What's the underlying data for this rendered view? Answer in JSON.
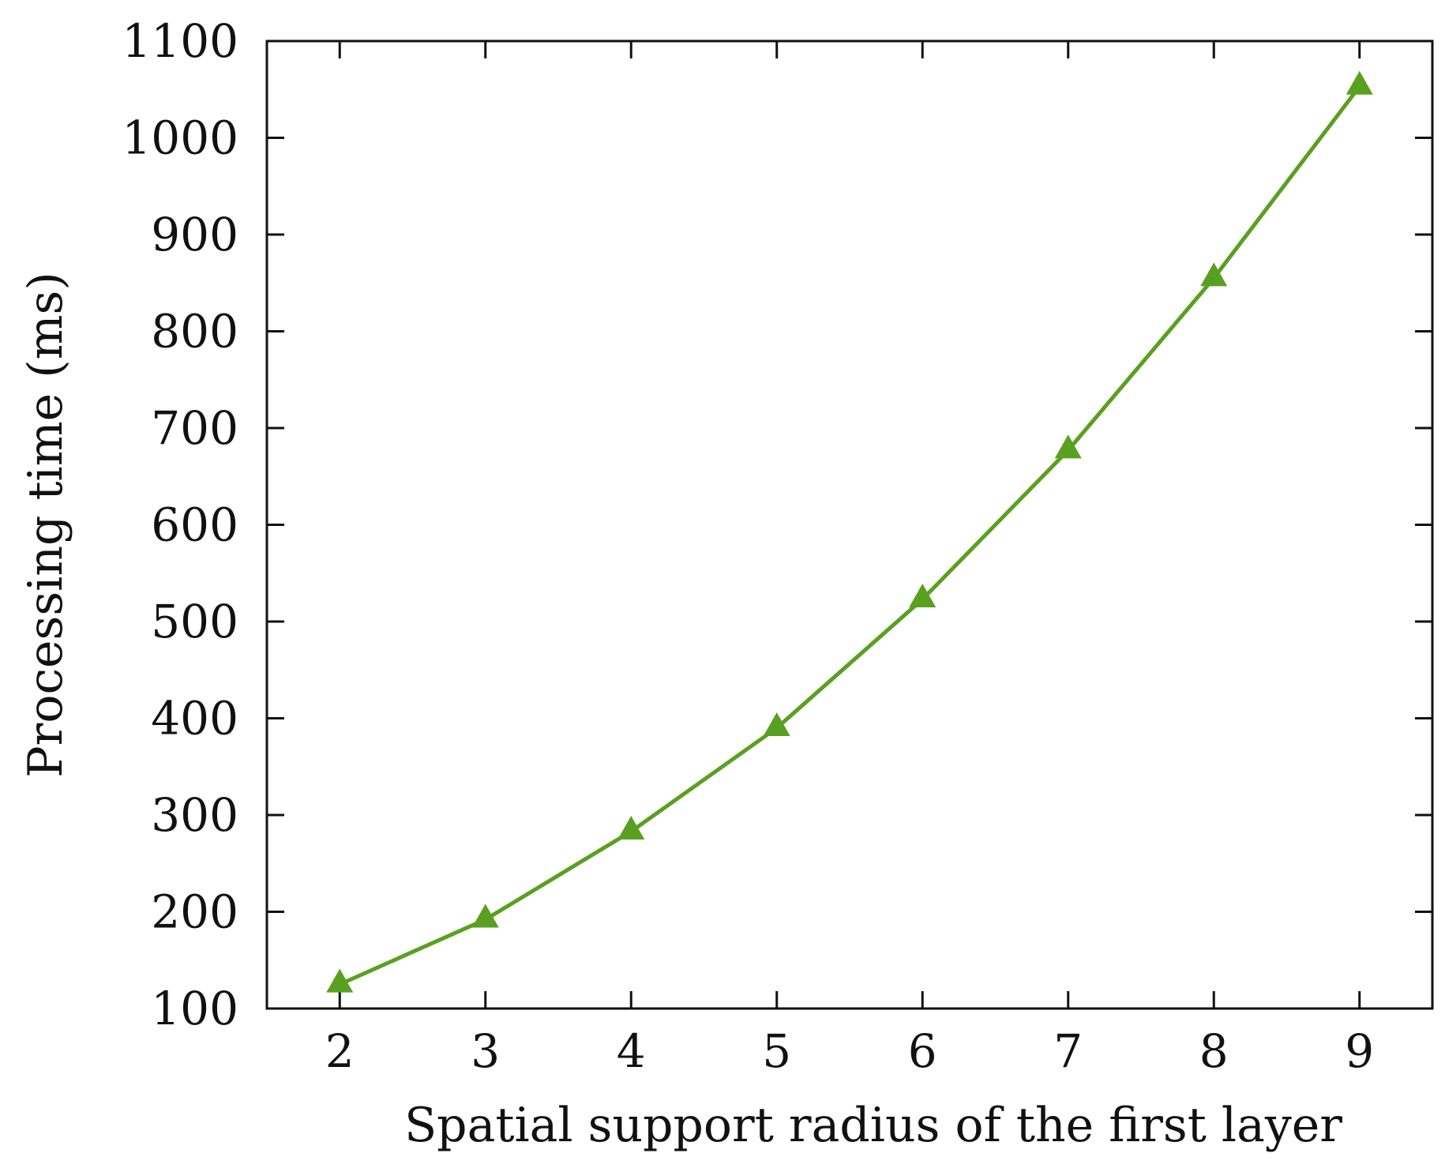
{
  "chart_data": {
    "type": "line",
    "title": "",
    "xlabel": "Spatial support radius of the first layer",
    "ylabel": "Processing time (ms)",
    "xlim": [
      1.5,
      9.5
    ],
    "ylim": [
      100,
      1100
    ],
    "x_ticks": [
      2,
      3,
      4,
      5,
      6,
      7,
      8,
      9
    ],
    "y_ticks": [
      100,
      200,
      300,
      400,
      500,
      600,
      700,
      800,
      900,
      1000,
      1100
    ],
    "grid": false,
    "legend": "none",
    "series": [
      {
        "color": "#5aa020",
        "marker": "triangle",
        "x": [
          2,
          3,
          4,
          5,
          6,
          7,
          8,
          9
        ],
        "values": [
          125,
          192,
          283,
          390,
          523,
          677,
          855,
          1053
        ]
      }
    ]
  }
}
